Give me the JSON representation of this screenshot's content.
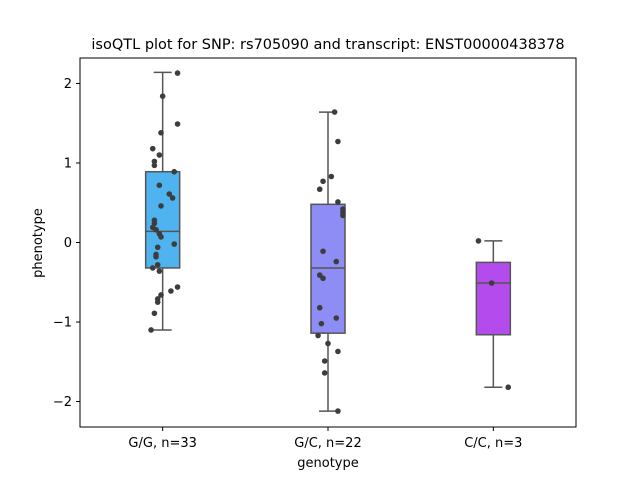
{
  "chart_data": {
    "type": "box",
    "title": "isoQTL plot for SNP: rs705090 and transcript: ENST00000438378",
    "xlabel": "genotype",
    "ylabel": "phenotype",
    "ylim": [
      -2.32,
      2.32
    ],
    "yticks": [
      2,
      1,
      0,
      -1,
      -2
    ],
    "ytick_labels": [
      "2",
      "1",
      "0",
      "−1",
      "−2"
    ],
    "grid": false,
    "legend": "none",
    "categories": [
      "G/G, n=33",
      "G/C, n=22",
      "C/C, n=3"
    ],
    "colors": [
      "#4fb3ef",
      "#8e8cf5",
      "#b44ced"
    ],
    "boxes": [
      {
        "whisker_low": -1.1,
        "q1": -0.32,
        "median": 0.14,
        "q3": 0.89,
        "whisker_high": 2.14
      },
      {
        "whisker_low": -2.12,
        "q1": -1.14,
        "median": -0.32,
        "q3": 0.48,
        "whisker_high": 1.64
      },
      {
        "whisker_low": -1.82,
        "q1": -1.16,
        "median": -0.51,
        "q3": -0.25,
        "whisker_high": 0.02
      }
    ],
    "points": [
      [
        2.13,
        1.84,
        1.49,
        1.38,
        1.18,
        1.1,
        1.02,
        0.97,
        0.89,
        0.61,
        0.56,
        0.46,
        0.72,
        0.28,
        0.24,
        0.16,
        0.11,
        0.07,
        -0.02,
        -0.06,
        -0.15,
        -0.18,
        -0.28,
        -0.32,
        -0.36,
        -0.56,
        -0.61,
        -0.66,
        -0.71,
        -0.75,
        -0.89,
        -1.1,
        0.19
      ],
      [
        1.64,
        1.27,
        0.83,
        0.77,
        0.67,
        0.51,
        0.42,
        0.38,
        0.34,
        -0.11,
        -0.24,
        -0.41,
        -0.45,
        -0.82,
        -0.95,
        -1.02,
        -1.17,
        -1.27,
        -1.37,
        -1.49,
        -1.64,
        -2.12
      ],
      [
        0.02,
        -0.51,
        -1.82
      ]
    ],
    "jitter": [
      [
        0.09,
        0.0,
        0.09,
        -0.01,
        -0.06,
        -0.02,
        -0.05,
        -0.05,
        0.07,
        0.04,
        0.06,
        -0.01,
        -0.02,
        -0.05,
        -0.05,
        -0.04,
        -0.02,
        -0.01,
        0.07,
        -0.03,
        -0.04,
        -0.04,
        -0.03,
        -0.06,
        -0.02,
        0.09,
        0.05,
        -0.01,
        -0.03,
        -0.03,
        -0.05,
        -0.07,
        -0.06
      ],
      [
        0.04,
        0.06,
        0.02,
        -0.03,
        -0.05,
        0.06,
        0.09,
        0.09,
        0.09,
        -0.03,
        0.05,
        -0.05,
        -0.03,
        -0.05,
        0.05,
        -0.04,
        -0.06,
        0.0,
        0.06,
        -0.02,
        -0.02,
        0.06
      ],
      [
        -0.09,
        -0.01,
        0.09
      ]
    ]
  }
}
